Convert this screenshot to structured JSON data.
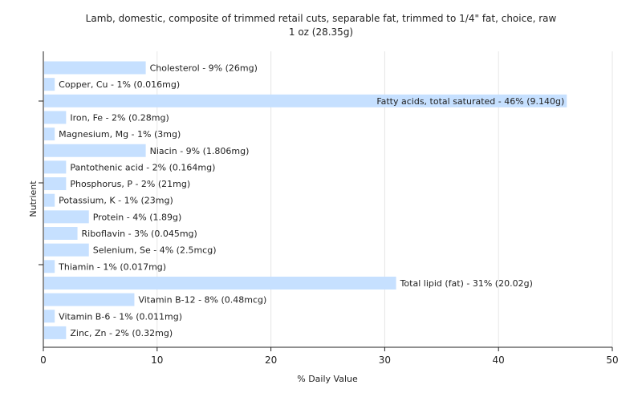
{
  "chart_data": {
    "type": "bar",
    "orientation": "horizontal",
    "title": "Lamb, domestic, composite of trimmed retail cuts, separable fat, trimmed to 1/4\" fat, choice, raw",
    "subtitle": "1 oz (28.35g)",
    "xlabel": "% Daily Value",
    "ylabel": "Nutrient",
    "xlim": [
      0,
      50
    ],
    "xticks": [
      0,
      10,
      20,
      30,
      40,
      50
    ],
    "grid": true,
    "bar_color": "#c6e0ff",
    "categories": [
      "Cholesterol",
      "Copper, Cu",
      "Fatty acids, total saturated",
      "Iron, Fe",
      "Magnesium, Mg",
      "Niacin",
      "Pantothenic acid",
      "Phosphorus, P",
      "Potassium, K",
      "Protein",
      "Riboflavin",
      "Selenium, Se",
      "Thiamin",
      "Total lipid (fat)",
      "Vitamin B-12",
      "Vitamin B-6",
      "Zinc, Zn"
    ],
    "values": [
      9,
      1,
      46,
      2,
      1,
      9,
      2,
      2,
      1,
      4,
      3,
      4,
      1,
      31,
      8,
      1,
      2
    ],
    "labels": [
      "Cholesterol - 9% (26mg)",
      "Copper, Cu - 1% (0.016mg)",
      "Fatty acids, total saturated - 46% (9.140g)",
      "Iron, Fe - 2% (0.28mg)",
      "Magnesium, Mg - 1% (3mg)",
      "Niacin - 9% (1.806mg)",
      "Pantothenic acid - 2% (0.164mg)",
      "Phosphorus, P - 2% (21mg)",
      "Potassium, K - 1% (23mg)",
      "Protein - 4% (1.89g)",
      "Riboflavin - 3% (0.045mg)",
      "Selenium, Se - 4% (2.5mcg)",
      "Thiamin - 1% (0.017mg)",
      "Total lipid (fat) - 31% (20.02g)",
      "Vitamin B-12 - 8% (0.48mcg)",
      "Vitamin B-6 - 1% (0.011mg)",
      "Zinc, Zn - 2% (0.32mg)"
    ]
  }
}
